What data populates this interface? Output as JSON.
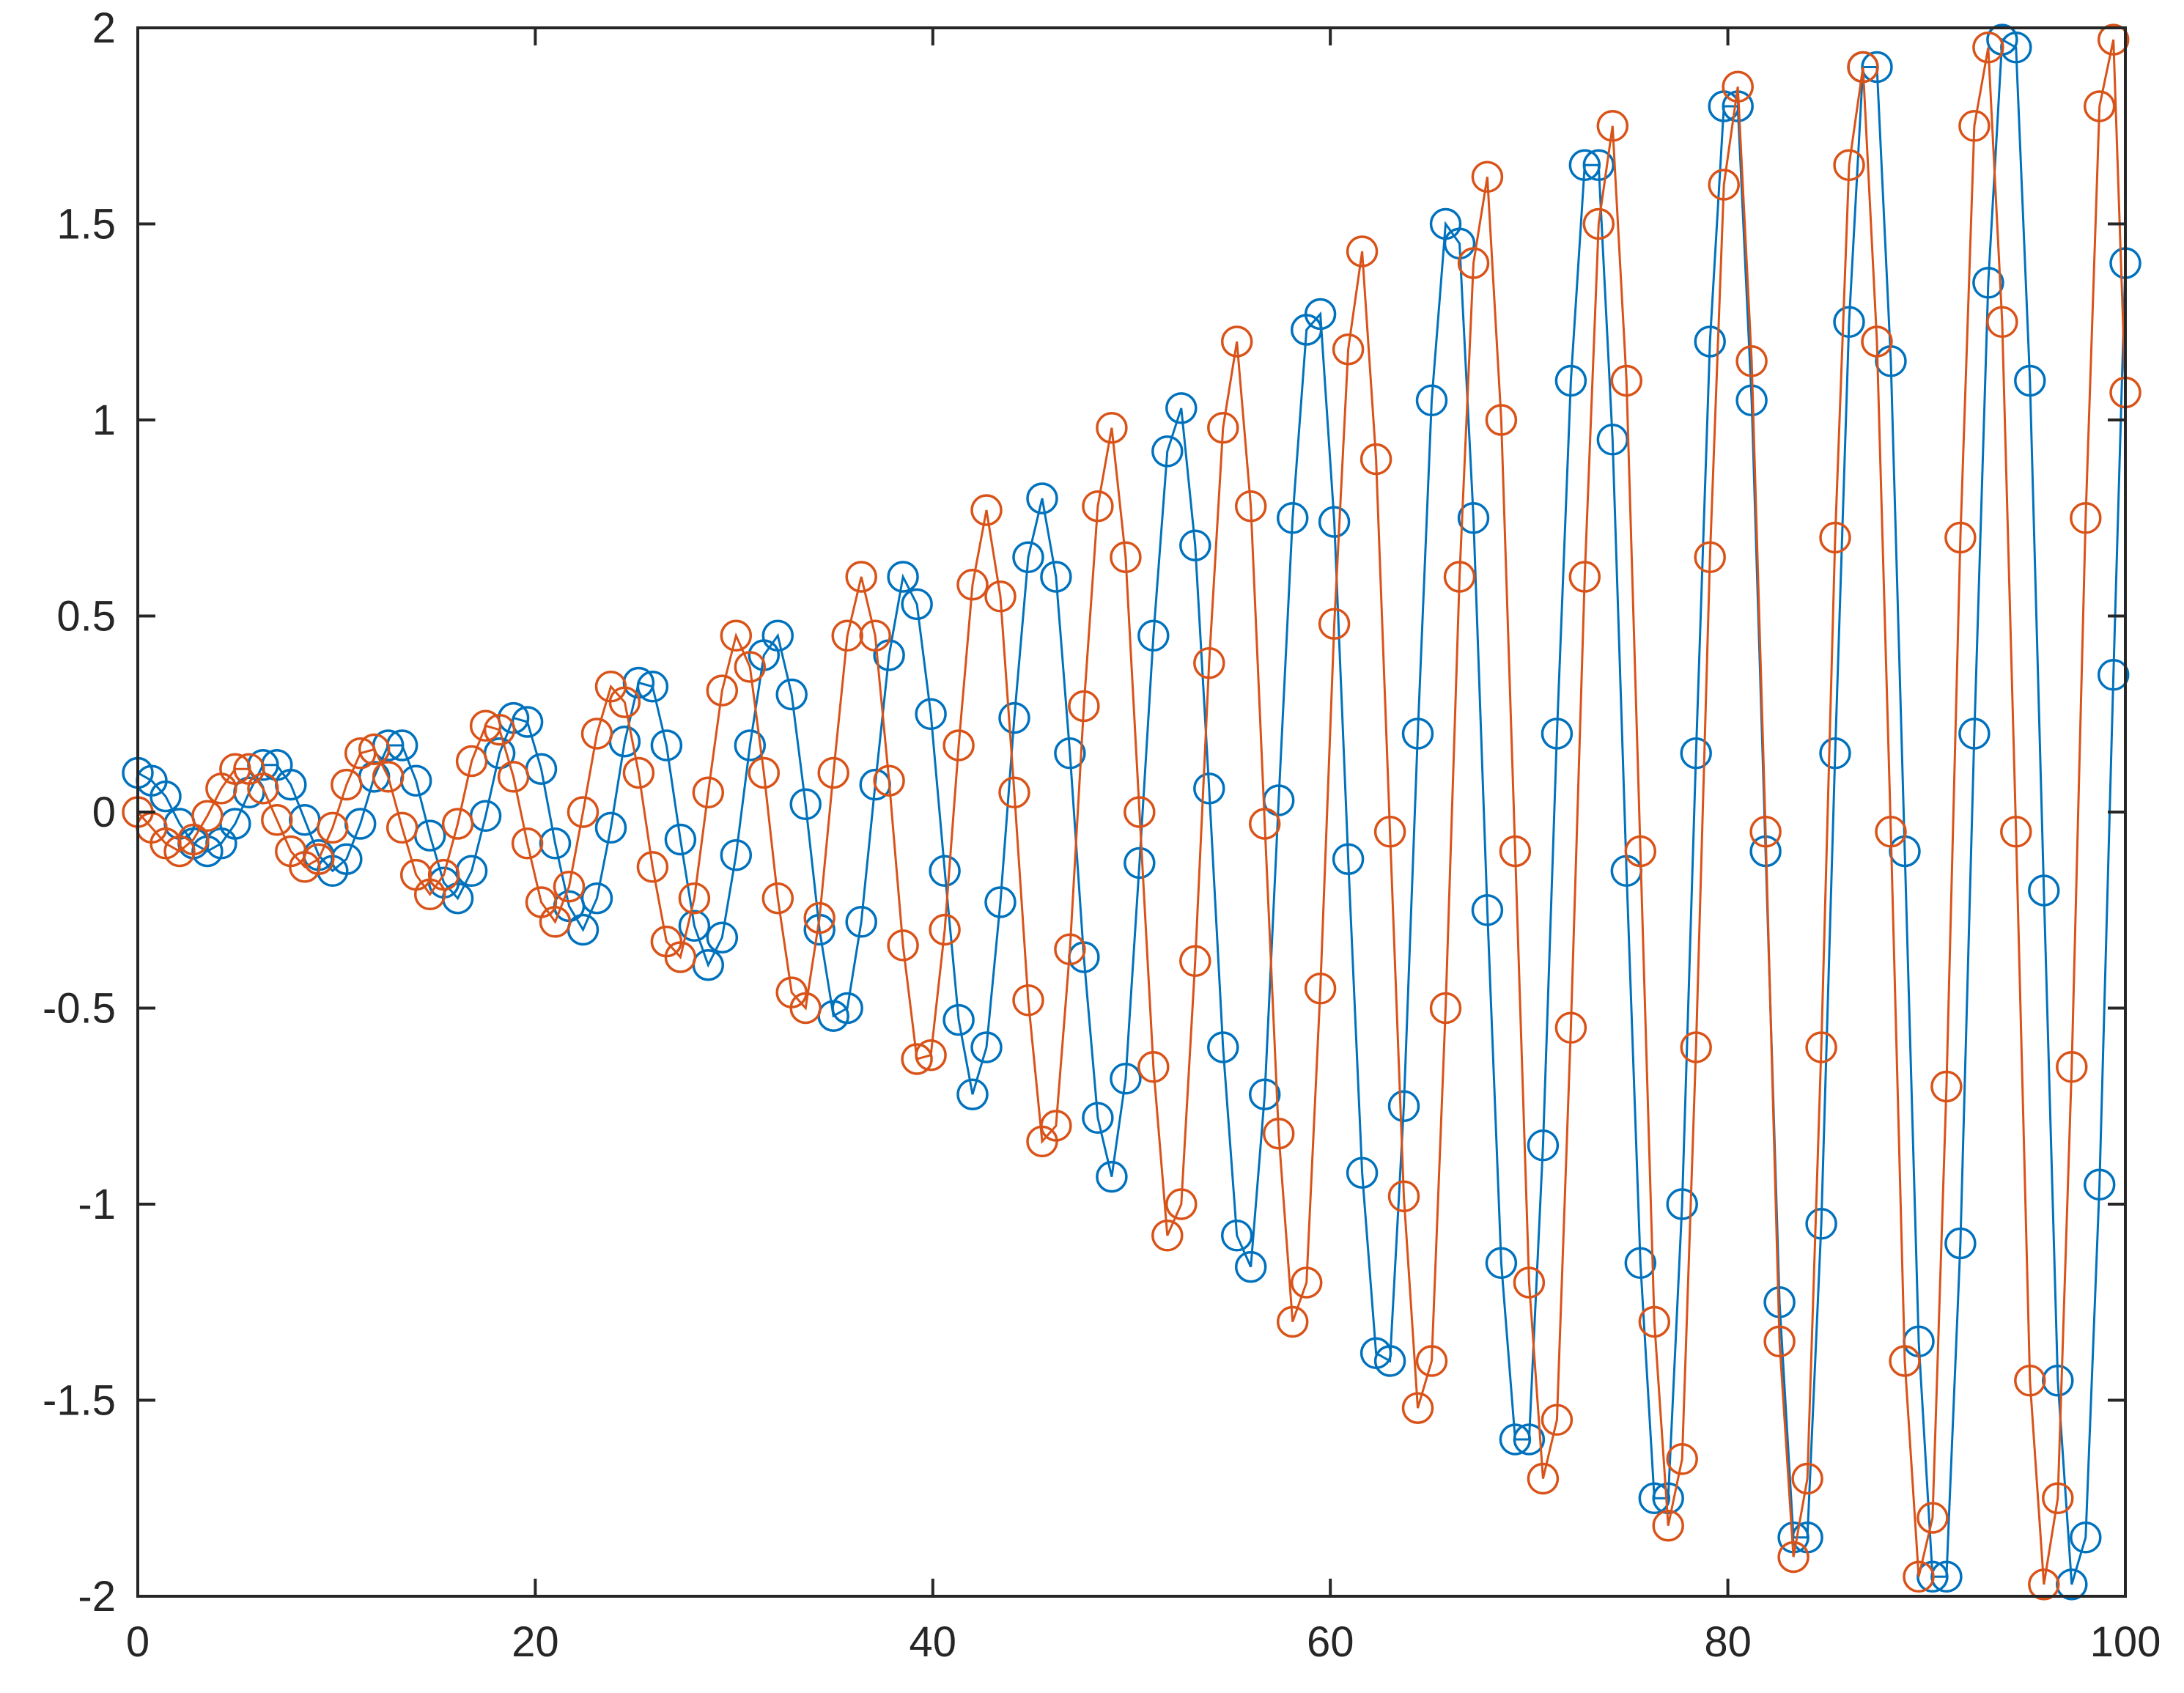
{
  "chart_data": {
    "type": "line",
    "title": "",
    "xlabel": "",
    "ylabel": "",
    "xlim": [
      0,
      100
    ],
    "ylim": [
      -2,
      2
    ],
    "grid": false,
    "box": true,
    "marker": "circle",
    "x_ticks": [
      0,
      20,
      40,
      60,
      80,
      100
    ],
    "y_ticks": [
      -2,
      -1.5,
      -1,
      -0.5,
      0,
      0.5,
      1,
      1.5,
      2
    ],
    "x_tick_labels": [
      "0",
      "20",
      "40",
      "60",
      "80",
      "100"
    ],
    "y_tick_labels": [
      "-2",
      "-1.5",
      "-1",
      "-0.5",
      "0",
      "0.5",
      "1",
      "1.5",
      "2"
    ],
    "series": [
      {
        "color": "#0072BD",
        "points": [
          [
            0,
            0.1
          ],
          [
            0.7,
            0.08
          ],
          [
            1.4,
            0.04
          ],
          [
            2.1,
            -0.03
          ],
          [
            2.8,
            -0.08
          ],
          [
            3.5,
            -0.1
          ],
          [
            4.2,
            -0.08
          ],
          [
            4.9,
            -0.03
          ],
          [
            5.6,
            0.05
          ],
          [
            6.3,
            0.12
          ],
          [
            7,
            0.12
          ],
          [
            7.7,
            0.07
          ],
          [
            8.4,
            -0.02
          ],
          [
            9.1,
            -0.11
          ],
          [
            9.8,
            -0.15
          ],
          [
            10.5,
            -0.12
          ],
          [
            11.2,
            -0.03
          ],
          [
            11.9,
            0.09
          ],
          [
            12.6,
            0.17
          ],
          [
            13.3,
            0.17
          ],
          [
            14,
            0.08
          ],
          [
            14.7,
            -0.06
          ],
          [
            15.4,
            -0.18
          ],
          [
            16.1,
            -0.22
          ],
          [
            16.8,
            -0.15
          ],
          [
            17.5,
            -0.01
          ],
          [
            18.2,
            0.15
          ],
          [
            18.9,
            0.24
          ],
          [
            19.6,
            0.23
          ],
          [
            20.3,
            0.11
          ],
          [
            21,
            -0.08
          ],
          [
            21.7,
            -0.24
          ],
          [
            22.4,
            -0.3
          ],
          [
            23.1,
            -0.22
          ],
          [
            23.8,
            -0.04
          ],
          [
            24.5,
            0.18
          ],
          [
            25.2,
            0.33
          ],
          [
            25.9,
            0.32
          ],
          [
            26.6,
            0.17
          ],
          [
            27.3,
            -0.07
          ],
          [
            28,
            -0.29
          ],
          [
            28.7,
            -0.39
          ],
          [
            29.4,
            -0.32
          ],
          [
            30.1,
            -0.11
          ],
          [
            30.8,
            0.17
          ],
          [
            31.5,
            0.4
          ],
          [
            32.2,
            0.45
          ],
          [
            32.9,
            0.3
          ],
          [
            33.6,
            0.02
          ],
          [
            34.3,
            -0.3
          ],
          [
            35,
            -0.52
          ],
          [
            35.7,
            -0.5
          ],
          [
            36.4,
            -0.28
          ],
          [
            37.1,
            0.07
          ],
          [
            37.8,
            0.4
          ],
          [
            38.5,
            0.6
          ],
          [
            39.2,
            0.53
          ],
          [
            39.9,
            0.25
          ],
          [
            40.6,
            -0.15
          ],
          [
            41.3,
            -0.53
          ],
          [
            42,
            -0.72
          ],
          [
            42.7,
            -0.6
          ],
          [
            43.4,
            -0.23
          ],
          [
            44.1,
            0.24
          ],
          [
            44.8,
            0.65
          ],
          [
            45.5,
            0.8
          ],
          [
            46.2,
            0.6
          ],
          [
            46.9,
            0.15
          ],
          [
            47.6,
            -0.37
          ],
          [
            48.3,
            -0.78
          ],
          [
            49,
            -0.93
          ],
          [
            49.7,
            -0.68
          ],
          [
            50.4,
            -0.13
          ],
          [
            51.1,
            0.45
          ],
          [
            51.8,
            0.92
          ],
          [
            52.5,
            1.03
          ],
          [
            53.2,
            0.68
          ],
          [
            53.9,
            0.06
          ],
          [
            54.6,
            -0.6
          ],
          [
            55.3,
            -1.08
          ],
          [
            56,
            -1.16
          ],
          [
            56.7,
            -0.72
          ],
          [
            57.4,
            0.03
          ],
          [
            58.1,
            0.75
          ],
          [
            58.8,
            1.23
          ],
          [
            59.5,
            1.27
          ],
          [
            60.2,
            0.74
          ],
          [
            60.9,
            -0.12
          ],
          [
            61.6,
            -0.92
          ],
          [
            62.3,
            -1.38
          ],
          [
            63,
            -1.4
          ],
          [
            63.7,
            -0.75
          ],
          [
            64.4,
            0.2
          ],
          [
            65.1,
            1.05
          ],
          [
            65.8,
            1.5
          ],
          [
            66.5,
            1.45
          ],
          [
            67.2,
            0.75
          ],
          [
            67.9,
            -0.25
          ],
          [
            68.6,
            -1.15
          ],
          [
            69.3,
            -1.6
          ],
          [
            70,
            -1.6
          ],
          [
            70.7,
            -0.85
          ],
          [
            71.4,
            0.2
          ],
          [
            72.1,
            1.1
          ],
          [
            72.8,
            1.65
          ],
          [
            73.5,
            1.65
          ],
          [
            74.2,
            0.95
          ],
          [
            74.9,
            -0.15
          ],
          [
            75.6,
            -1.15
          ],
          [
            76.3,
            -1.75
          ],
          [
            77,
            -1.75
          ],
          [
            77.7,
            -1.0
          ],
          [
            78.4,
            0.15
          ],
          [
            79.1,
            1.2
          ],
          [
            79.8,
            1.8
          ],
          [
            80.5,
            1.8
          ],
          [
            81.2,
            1.05
          ],
          [
            81.9,
            -0.1
          ],
          [
            82.6,
            -1.25
          ],
          [
            83.3,
            -1.85
          ],
          [
            84,
            -1.85
          ],
          [
            84.7,
            -1.05
          ],
          [
            85.4,
            0.15
          ],
          [
            86.1,
            1.25
          ],
          [
            86.8,
            1.9
          ],
          [
            87.5,
            1.9
          ],
          [
            88.2,
            1.15
          ],
          [
            88.9,
            -0.1
          ],
          [
            89.6,
            -1.35
          ],
          [
            90.3,
            -1.95
          ],
          [
            91,
            -1.95
          ],
          [
            91.7,
            -1.1
          ],
          [
            92.4,
            0.2
          ],
          [
            93.1,
            1.35
          ],
          [
            93.8,
            1.97
          ],
          [
            94.5,
            1.95
          ],
          [
            95.2,
            1.1
          ],
          [
            95.9,
            -0.2
          ],
          [
            96.6,
            -1.45
          ],
          [
            97.3,
            -1.97
          ],
          [
            98,
            -1.85
          ],
          [
            98.7,
            -0.95
          ],
          [
            99.4,
            0.35
          ],
          [
            100,
            1.4
          ]
        ]
      },
      {
        "color": "#D95319",
        "points": [
          [
            0,
            0.0
          ],
          [
            0.7,
            -0.04
          ],
          [
            1.4,
            -0.08
          ],
          [
            2.1,
            -0.1
          ],
          [
            2.8,
            -0.07
          ],
          [
            3.5,
            -0.01
          ],
          [
            4.2,
            0.06
          ],
          [
            4.9,
            0.11
          ],
          [
            5.6,
            0.11
          ],
          [
            6.3,
            0.06
          ],
          [
            7,
            -0.02
          ],
          [
            7.7,
            -0.1
          ],
          [
            8.4,
            -0.14
          ],
          [
            9.1,
            -0.12
          ],
          [
            9.8,
            -0.04
          ],
          [
            10.5,
            0.07
          ],
          [
            11.2,
            0.15
          ],
          [
            11.9,
            0.16
          ],
          [
            12.6,
            0.09
          ],
          [
            13.3,
            -0.04
          ],
          [
            14,
            -0.16
          ],
          [
            14.7,
            -0.21
          ],
          [
            15.4,
            -0.16
          ],
          [
            16.1,
            -0.03
          ],
          [
            16.8,
            0.13
          ],
          [
            17.5,
            0.22
          ],
          [
            18.2,
            0.21
          ],
          [
            18.9,
            0.09
          ],
          [
            19.6,
            -0.08
          ],
          [
            20.3,
            -0.23
          ],
          [
            21,
            -0.28
          ],
          [
            21.7,
            -0.19
          ],
          [
            22.4,
            0.0
          ],
          [
            23.1,
            0.2
          ],
          [
            23.8,
            0.32
          ],
          [
            24.5,
            0.28
          ],
          [
            25.2,
            0.1
          ],
          [
            25.9,
            -0.14
          ],
          [
            26.6,
            -0.33
          ],
          [
            27.3,
            -0.37
          ],
          [
            28,
            -0.22
          ],
          [
            28.7,
            0.05
          ],
          [
            29.4,
            0.31
          ],
          [
            30.1,
            0.45
          ],
          [
            30.8,
            0.37
          ],
          [
            31.5,
            0.1
          ],
          [
            32.2,
            -0.22
          ],
          [
            32.9,
            -0.46
          ],
          [
            33.6,
            -0.5
          ],
          [
            34.3,
            -0.27
          ],
          [
            35,
            0.1
          ],
          [
            35.7,
            0.45
          ],
          [
            36.4,
            0.6
          ],
          [
            37.1,
            0.45
          ],
          [
            37.8,
            0.08
          ],
          [
            38.5,
            -0.34
          ],
          [
            39.2,
            -0.63
          ],
          [
            39.9,
            -0.62
          ],
          [
            40.6,
            -0.3
          ],
          [
            41.3,
            0.17
          ],
          [
            42,
            0.58
          ],
          [
            42.7,
            0.77
          ],
          [
            43.4,
            0.55
          ],
          [
            44.1,
            0.05
          ],
          [
            44.8,
            -0.48
          ],
          [
            45.5,
            -0.84
          ],
          [
            46.2,
            -0.8
          ],
          [
            46.9,
            -0.35
          ],
          [
            47.6,
            0.27
          ],
          [
            48.3,
            0.78
          ],
          [
            49,
            0.98
          ],
          [
            49.7,
            0.65
          ],
          [
            50.4,
            0.0
          ],
          [
            51.1,
            -0.65
          ],
          [
            51.8,
            -1.08
          ],
          [
            52.5,
            -1.0
          ],
          [
            53.2,
            -0.38
          ],
          [
            53.9,
            0.38
          ],
          [
            54.6,
            0.98
          ],
          [
            55.3,
            1.2
          ],
          [
            56,
            0.78
          ],
          [
            56.7,
            -0.03
          ],
          [
            57.4,
            -0.82
          ],
          [
            58.1,
            -1.3
          ],
          [
            58.8,
            -1.2
          ],
          [
            59.5,
            -0.45
          ],
          [
            60.2,
            0.48
          ],
          [
            60.9,
            1.18
          ],
          [
            61.6,
            1.43
          ],
          [
            62.3,
            0.9
          ],
          [
            63,
            -0.05
          ],
          [
            63.7,
            -0.98
          ],
          [
            64.4,
            -1.52
          ],
          [
            65.1,
            -1.4
          ],
          [
            65.8,
            -0.5
          ],
          [
            66.5,
            0.6
          ],
          [
            67.2,
            1.4
          ],
          [
            67.9,
            1.62
          ],
          [
            68.6,
            1.0
          ],
          [
            69.3,
            -0.1
          ],
          [
            70,
            -1.2
          ],
          [
            70.7,
            -1.7
          ],
          [
            71.4,
            -1.55
          ],
          [
            72.1,
            -0.55
          ],
          [
            72.8,
            0.6
          ],
          [
            73.5,
            1.5
          ],
          [
            74.2,
            1.75
          ],
          [
            74.9,
            1.1
          ],
          [
            75.6,
            -0.1
          ],
          [
            76.3,
            -1.3
          ],
          [
            77,
            -1.82
          ],
          [
            77.7,
            -1.65
          ],
          [
            78.4,
            -0.6
          ],
          [
            79.1,
            0.65
          ],
          [
            79.8,
            1.6
          ],
          [
            80.5,
            1.85
          ],
          [
            81.2,
            1.15
          ],
          [
            81.9,
            -0.05
          ],
          [
            82.6,
            -1.35
          ],
          [
            83.3,
            -1.9
          ],
          [
            84,
            -1.7
          ],
          [
            84.7,
            -0.6
          ],
          [
            85.4,
            0.7
          ],
          [
            86.1,
            1.65
          ],
          [
            86.8,
            1.9
          ],
          [
            87.5,
            1.2
          ],
          [
            88.2,
            -0.05
          ],
          [
            88.9,
            -1.4
          ],
          [
            89.6,
            -1.95
          ],
          [
            90.3,
            -1.8
          ],
          [
            91,
            -0.7
          ],
          [
            91.7,
            0.7
          ],
          [
            92.4,
            1.75
          ],
          [
            93.1,
            1.95
          ],
          [
            93.8,
            1.25
          ],
          [
            94.5,
            -0.05
          ],
          [
            95.2,
            -1.45
          ],
          [
            95.9,
            -1.97
          ],
          [
            96.6,
            -1.75
          ],
          [
            97.3,
            -0.65
          ],
          [
            98,
            0.75
          ],
          [
            98.7,
            1.8
          ],
          [
            99.4,
            1.97
          ],
          [
            100,
            1.07
          ]
        ]
      }
    ]
  }
}
